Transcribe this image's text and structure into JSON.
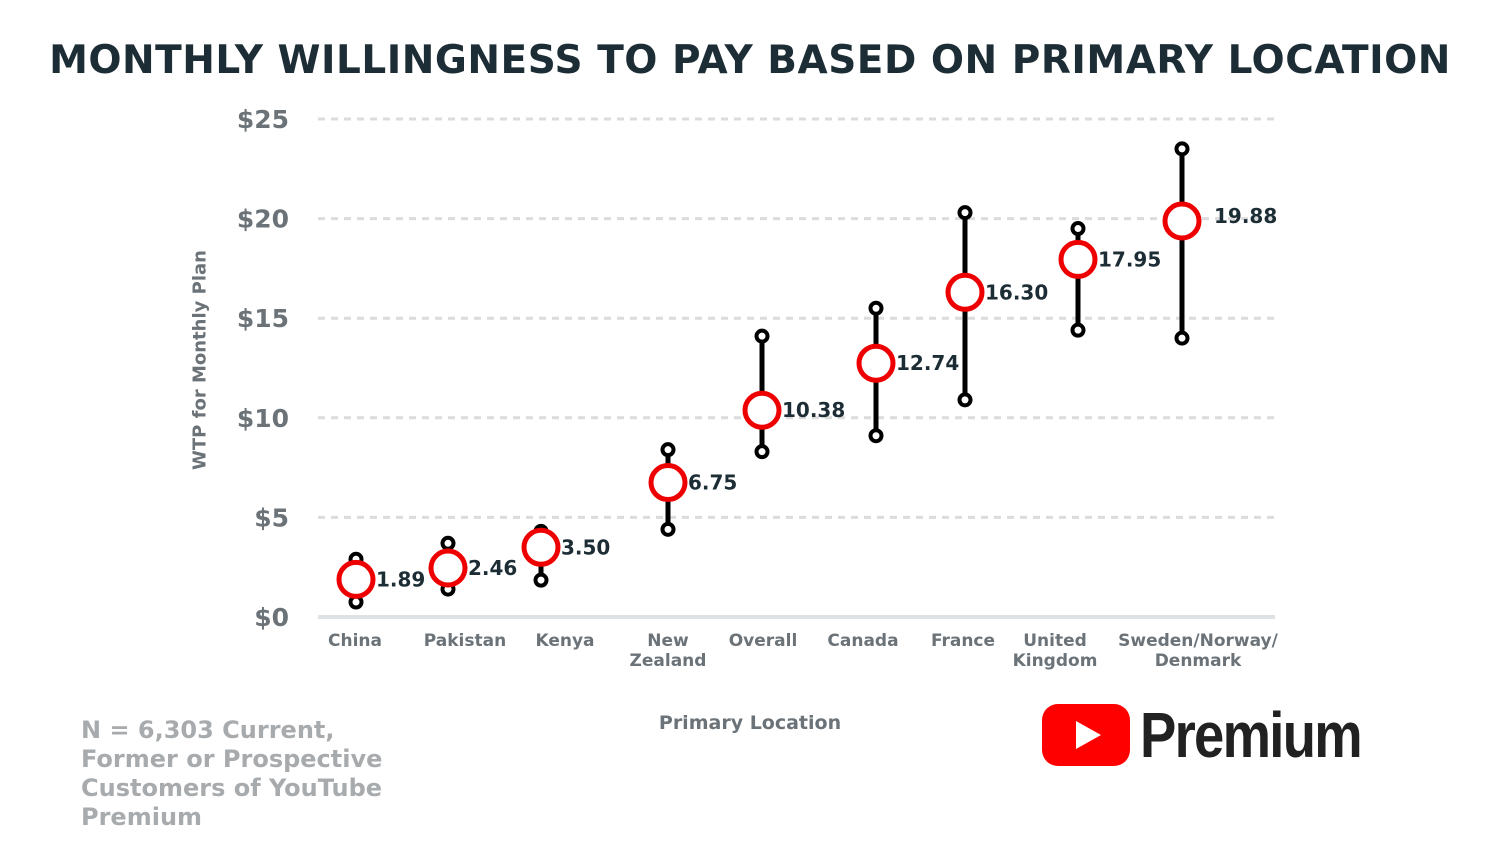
{
  "chart_data": {
    "type": "range-dot",
    "title": "MONTHLY WILLINGNESS TO PAY BASED ON PRIMARY LOCATION",
    "xlabel": "Primary Location",
    "ylabel": "WTP for Monthly Plan",
    "ylim": [
      0,
      25
    ],
    "yticks": [
      0,
      5,
      10,
      15,
      20,
      25
    ],
    "ytick_labels": [
      "$0",
      "$5",
      "$10",
      "$15",
      "$20",
      "$25"
    ],
    "grid": true,
    "categories": [
      "China",
      "Pakistan",
      "Kenya",
      "New Zealand",
      "Overall",
      "Canada",
      "France",
      "United Kingdom",
      "Sweden/Norway/ Denmark"
    ],
    "category_lines": [
      [
        "China"
      ],
      [
        "Pakistan"
      ],
      [
        "Kenya"
      ],
      [
        "New",
        "Zealand"
      ],
      [
        "Overall"
      ],
      [
        "Canada"
      ],
      [
        "France"
      ],
      [
        "United",
        "Kingdom"
      ],
      [
        "Sweden/Norway/",
        "Denmark"
      ]
    ],
    "values": [
      1.89,
      2.46,
      3.5,
      6.75,
      10.38,
      12.74,
      16.3,
      17.95,
      19.88
    ],
    "value_labels": [
      "1.89",
      "2.46",
      "3.50",
      "6.75",
      "10.38",
      "12.74",
      "16.30",
      "17.95",
      "19.88"
    ],
    "low": [
      0.75,
      1.4,
      1.85,
      4.4,
      8.3,
      9.1,
      10.9,
      14.4,
      14.0
    ],
    "high": [
      2.9,
      3.7,
      4.3,
      8.4,
      14.1,
      15.5,
      20.3,
      19.5,
      23.5
    ],
    "colors": {
      "marker": "#ee0000",
      "whisker": "#000000",
      "grid": "#dcdcdc",
      "axis": "#dde2e6",
      "title": "#1d2d35",
      "label": "#1d2d35",
      "tick": "#6b7378"
    }
  },
  "note": "N = 6,303 Current, Former or Prospective Customers of YouTube Premium",
  "logo": {
    "text": "Premium",
    "brand_red": "#ff0000"
  }
}
